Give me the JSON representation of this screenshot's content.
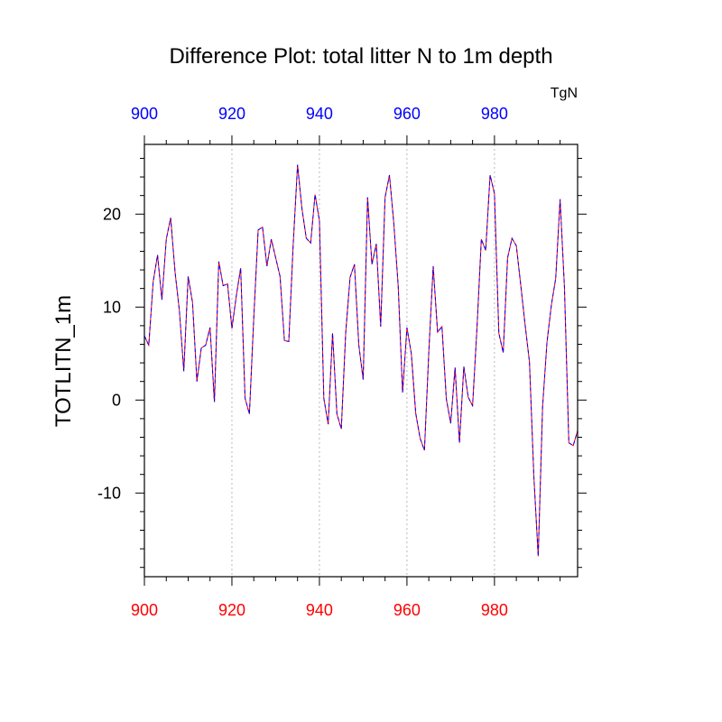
{
  "chart_data": {
    "type": "line",
    "title": "Difference Plot: total litter N to 1m depth",
    "units": "TgN",
    "ylabel": "TOTLITN_1m",
    "xlabel": "",
    "xlim": [
      900,
      999
    ],
    "ylim": [
      -19,
      27.5
    ],
    "x_ticks": [
      900,
      920,
      940,
      960,
      980
    ],
    "y_ticks": [
      -10,
      0,
      10,
      20
    ],
    "x_tick_labels": [
      "900",
      "920",
      "940",
      "960",
      "980"
    ],
    "y_tick_labels": [
      "-10",
      "0",
      "10",
      "20"
    ],
    "top_axis_color": "#0000ff",
    "bottom_axis_color": "#ff0000",
    "grid": "vertical dotted at major x ticks",
    "series": [
      {
        "line_colors": [
          "#ff0000",
          "#0000ff"
        ],
        "line_style": "dashed",
        "x_start": 900,
        "x_step": 1,
        "values": [
          6.9,
          5.9,
          12.7,
          15.6,
          10.8,
          17.3,
          19.6,
          13.8,
          9.6,
          3.1,
          13.3,
          10.5,
          2.0,
          5.6,
          5.9,
          7.8,
          -0.2,
          14.9,
          12.3,
          12.5,
          7.7,
          11.2,
          14.2,
          0.2,
          -1.5,
          8.9,
          18.3,
          18.6,
          14.4,
          17.3,
          15.3,
          13.3,
          6.4,
          6.3,
          16.7,
          25.3,
          20.6,
          17.4,
          16.9,
          22.1,
          19.3,
          0.2,
          -2.6,
          7.2,
          -1.5,
          -3.1,
          7.2,
          13.2,
          14.6,
          5.9,
          2.2,
          21.8,
          14.6,
          16.8,
          7.9,
          21.8,
          24.2,
          19.0,
          12.3,
          0.8,
          7.8,
          5.0,
          -1.4,
          -4.1,
          -5.4,
          5.2,
          14.4,
          7.3,
          7.9,
          0.1,
          -2.5,
          3.5,
          -4.6,
          3.6,
          0.3,
          -0.6,
          7.7,
          17.3,
          16.1,
          24.2,
          22.2,
          7.2,
          5.1,
          15.3,
          17.4,
          16.6,
          12.4,
          8.1,
          4.1,
          -8.2,
          -16.8,
          -0.7,
          6.2,
          10.2,
          13.1,
          21.6,
          12.1,
          -4.6,
          -4.9,
          -3.3
        ]
      }
    ]
  }
}
